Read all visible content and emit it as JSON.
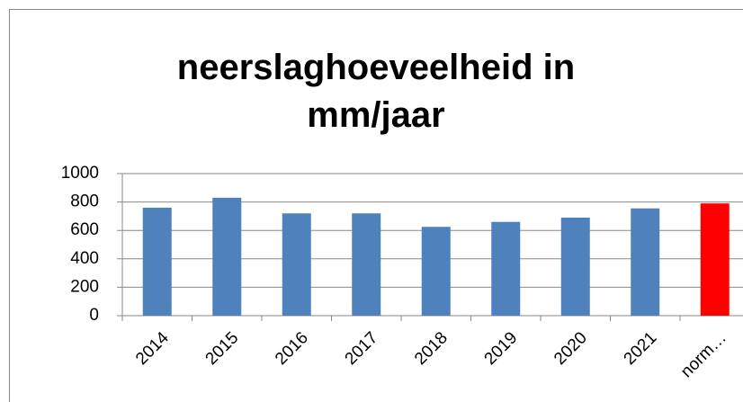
{
  "chart_data": {
    "type": "bar",
    "title": [
      "neerslaghoeveelheid in",
      "mm/jaar"
    ],
    "categories": [
      "2014",
      "2015",
      "2016",
      "2017",
      "2018",
      "2019",
      "2020",
      "2021",
      "norm…"
    ],
    "values": [
      760,
      830,
      720,
      720,
      625,
      660,
      690,
      755,
      790
    ],
    "colors": [
      "#4f81bd",
      "#4f81bd",
      "#4f81bd",
      "#4f81bd",
      "#4f81bd",
      "#4f81bd",
      "#4f81bd",
      "#4f81bd",
      "#ff0000"
    ],
    "ylim": [
      0,
      1000
    ],
    "yticks": [
      0,
      200,
      400,
      600,
      800,
      1000
    ],
    "grid": true
  }
}
